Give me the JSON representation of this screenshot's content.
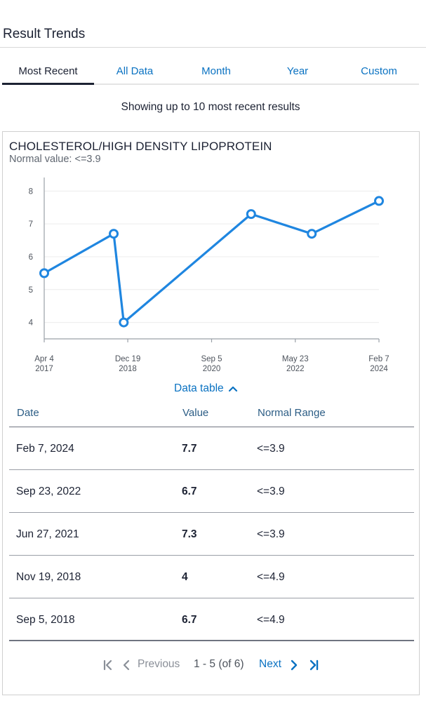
{
  "page": {
    "title": "Result Trends"
  },
  "tabs": [
    {
      "label": "Most Recent",
      "active": true
    },
    {
      "label": "All Data",
      "active": false
    },
    {
      "label": "Month",
      "active": false
    },
    {
      "label": "Year",
      "active": false
    },
    {
      "label": "Custom",
      "active": false
    }
  ],
  "showing_text": "Showing up to 10 most recent results",
  "card": {
    "title": "CHOLESTEROL/HIGH DENSITY LIPOPROTEIN",
    "normal_value": "Normal value: <=3.9",
    "data_table_toggle": "Data table"
  },
  "chart_data": {
    "type": "line",
    "title": "CHOLESTEROL/HIGH DENSITY LIPOPROTEIN",
    "xlabel": "",
    "ylabel": "",
    "x_ticks": [
      {
        "line1": "Apr 4",
        "line2": "2017",
        "date": "2017-04-04"
      },
      {
        "line1": "Dec 19",
        "line2": "2018",
        "date": "2018-12-19"
      },
      {
        "line1": "Sep 5",
        "line2": "2020",
        "date": "2020-09-05"
      },
      {
        "line1": "May 23",
        "line2": "2022",
        "date": "2022-05-23"
      },
      {
        "line1": "Feb 7",
        "line2": "2024",
        "date": "2024-02-07"
      }
    ],
    "y_ticks": [
      4,
      5,
      6,
      7,
      8
    ],
    "ylim": [
      3.5,
      8.2
    ],
    "xlim": [
      "2017-04-04",
      "2024-02-07"
    ],
    "points": [
      {
        "date": "2017-04-04",
        "value": 5.5
      },
      {
        "date": "2018-09-05",
        "value": 6.7
      },
      {
        "date": "2018-11-19",
        "value": 4
      },
      {
        "date": "2021-06-27",
        "value": 7.3
      },
      {
        "date": "2022-09-23",
        "value": 6.7
      },
      {
        "date": "2024-02-07",
        "value": 7.7
      }
    ],
    "line_color": "#1f86e0",
    "grid": true
  },
  "table": {
    "headers": {
      "date": "Date",
      "value": "Value",
      "range": "Normal Range"
    },
    "rows": [
      {
        "date": "Feb 7, 2024",
        "value": "7.7",
        "range": "<=3.9"
      },
      {
        "date": "Sep 23, 2022",
        "value": "6.7",
        "range": "<=3.9"
      },
      {
        "date": "Jun 27, 2021",
        "value": "7.3",
        "range": "<=3.9"
      },
      {
        "date": "Nov 19, 2018",
        "value": "4",
        "range": "<=4.9"
      },
      {
        "date": "Sep 5, 2018",
        "value": "6.7",
        "range": "<=4.9"
      }
    ]
  },
  "pager": {
    "previous": "Previous",
    "info": "1 - 5 (of 6)",
    "next": "Next"
  },
  "colors": {
    "accent": "#0a72c2",
    "text": "#1c2233",
    "line": "#1f86e0"
  }
}
